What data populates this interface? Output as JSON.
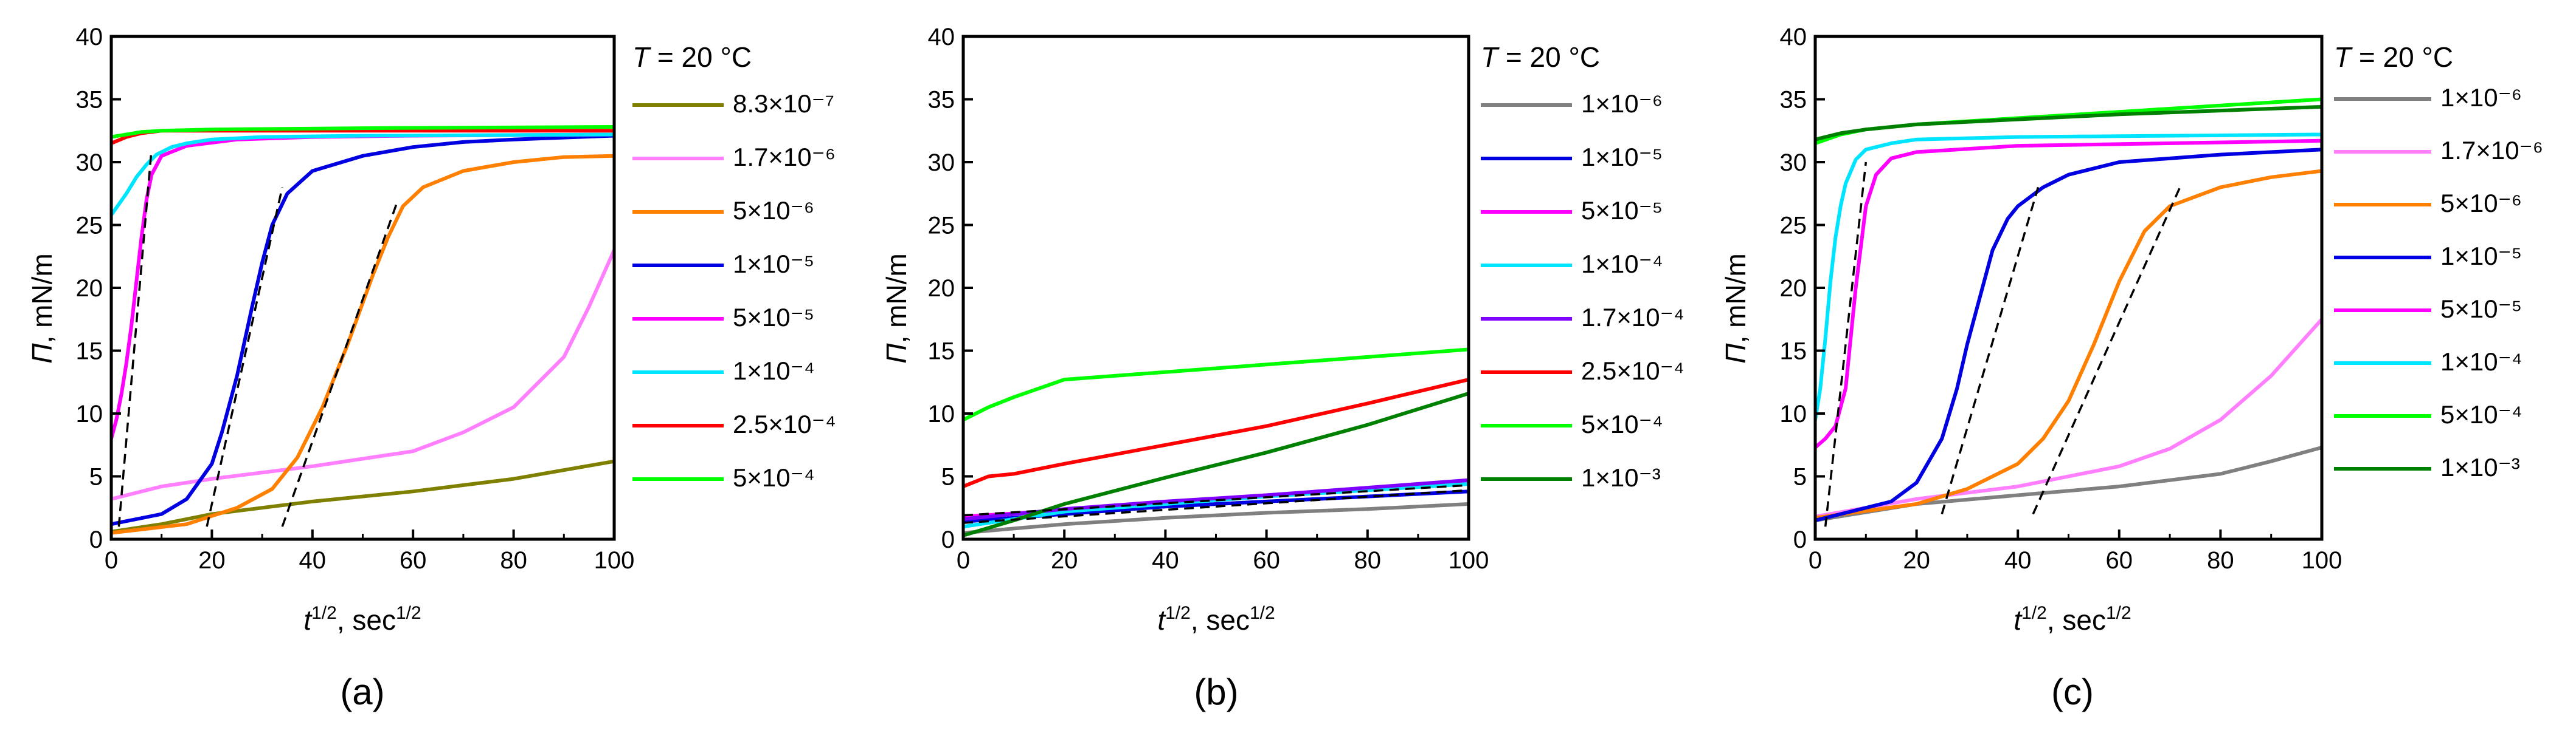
{
  "chart_data": [
    {
      "type": "line",
      "panel_label": "(a)",
      "xlabel_base": "t",
      "xlabel_exp": "1/2",
      "xlabel_units": ", sec",
      "xlabel_units_exp": "1/2",
      "ylabel_symbol": "Π",
      "ylabel_units": ", mN/m",
      "xlim": [
        0,
        100
      ],
      "ylim": [
        0,
        40
      ],
      "xticks": [
        0,
        20,
        40,
        60,
        80,
        100
      ],
      "yticks": [
        0,
        5,
        10,
        15,
        20,
        25,
        30,
        35,
        40
      ],
      "legend_title_var": "T",
      "legend_title_rest": " = 20 °C",
      "legend_labels": [
        "8.3×10⁻⁷",
        "1.7×10⁻⁶",
        "5×10⁻⁶",
        "1×10⁻⁵",
        "5×10⁻⁵",
        "1×10⁻⁴",
        "2.5×10⁻⁴",
        "5×10⁻⁴"
      ],
      "series": [
        {
          "name": "8.3×10⁻⁷",
          "color": "#808000",
          "x": [
            0,
            10,
            20,
            40,
            60,
            80,
            100
          ],
          "y": [
            0.6,
            1.2,
            2.0,
            3.0,
            3.8,
            4.8,
            6.2
          ]
        },
        {
          "name": "1.7×10⁻⁶",
          "color": "#ff7fff",
          "x": [
            0,
            10,
            20,
            40,
            60,
            70,
            80,
            90,
            95,
            100
          ],
          "y": [
            3.2,
            4.2,
            4.8,
            5.8,
            7.0,
            8.5,
            10.5,
            14.5,
            18.5,
            23.0
          ]
        },
        {
          "name": "5×10⁻⁶",
          "color": "#ff7f00",
          "x": [
            0,
            15,
            25,
            32,
            37,
            42,
            47,
            52,
            55,
            58,
            62,
            70,
            80,
            90,
            100
          ],
          "y": [
            0.5,
            1.2,
            2.5,
            4.0,
            6.5,
            10.5,
            15.5,
            21.0,
            24.0,
            26.5,
            28.0,
            29.3,
            30.0,
            30.4,
            30.5
          ]
        },
        {
          "name": "1×10⁻⁵",
          "color": "#0000e0",
          "x": [
            0,
            10,
            15,
            20,
            22,
            25,
            28,
            30,
            32,
            35,
            40,
            50,
            60,
            70,
            80,
            100
          ],
          "y": [
            1.2,
            2.0,
            3.2,
            6.0,
            8.5,
            13.0,
            18.5,
            22.0,
            25.0,
            27.5,
            29.3,
            30.5,
            31.2,
            31.6,
            31.8,
            32.1
          ]
        },
        {
          "name": "5×10⁻⁵",
          "color": "#ff00ff",
          "x": [
            0,
            1,
            2,
            3,
            4,
            5,
            6,
            7,
            8,
            10,
            15,
            25,
            40,
            60,
            100
          ],
          "y": [
            8.0,
            9.5,
            11.5,
            14.0,
            17.0,
            20.5,
            24.0,
            27.0,
            29.0,
            30.5,
            31.3,
            31.8,
            32.0,
            32.1,
            32.2
          ]
        },
        {
          "name": "1×10⁻⁴",
          "color": "#00e5ff",
          "x": [
            0,
            3,
            5,
            7,
            9,
            12,
            15,
            20,
            30,
            50,
            100
          ],
          "y": [
            25.8,
            27.5,
            28.8,
            29.8,
            30.6,
            31.2,
            31.5,
            31.8,
            32.0,
            32.1,
            32.2
          ]
        },
        {
          "name": "2.5×10⁻⁴",
          "color": "#ff0000",
          "x": [
            0,
            3,
            6,
            10,
            20,
            50,
            100
          ],
          "y": [
            31.5,
            32.0,
            32.3,
            32.5,
            32.5,
            32.5,
            32.5
          ]
        },
        {
          "name": "5×10⁻⁴",
          "color": "#00ff00",
          "x": [
            0,
            3,
            6,
            10,
            20,
            50,
            100
          ],
          "y": [
            32.0,
            32.2,
            32.4,
            32.5,
            32.6,
            32.7,
            32.8
          ]
        }
      ],
      "guides": [
        {
          "x": [
            1.5,
            8
          ],
          "y": [
            1,
            31
          ]
        },
        {
          "x": [
            19,
            34
          ],
          "y": [
            1,
            28
          ]
        },
        {
          "x": [
            34,
            57
          ],
          "y": [
            1,
            27
          ]
        }
      ]
    },
    {
      "type": "line",
      "panel_label": "(b)",
      "xlabel_base": "t",
      "xlabel_exp": "1/2",
      "xlabel_units": ", sec",
      "xlabel_units_exp": "1/2",
      "ylabel_symbol": "Π",
      "ylabel_units": ", mN/m",
      "xlim": [
        0,
        100
      ],
      "ylim": [
        0,
        40
      ],
      "xticks": [
        0,
        20,
        40,
        60,
        80,
        100
      ],
      "yticks": [
        0,
        5,
        10,
        15,
        20,
        25,
        30,
        35,
        40
      ],
      "legend_title_var": "T",
      "legend_title_rest": " = 20 °C",
      "legend_labels": [
        "1×10⁻⁶",
        "1×10⁻⁵",
        "5×10⁻⁵",
        "1×10⁻⁴",
        "1.7×10⁻⁴",
        "2.5×10⁻⁴",
        "5×10⁻⁴",
        "1×10⁻³"
      ],
      "series": [
        {
          "name": "1×10⁻⁶",
          "color": "#808080",
          "x": [
            0,
            20,
            40,
            60,
            80,
            100
          ],
          "y": [
            0.5,
            1.2,
            1.7,
            2.1,
            2.4,
            2.8
          ]
        },
        {
          "name": "1×10⁻⁵",
          "color": "#0000e0",
          "x": [
            0,
            20,
            40,
            60,
            80,
            100
          ],
          "y": [
            1.4,
            2.0,
            2.6,
            3.0,
            3.4,
            3.8
          ]
        },
        {
          "name": "5×10⁻⁵",
          "color": "#ff00ff",
          "x": [
            0,
            20,
            40,
            60,
            80,
            100
          ],
          "y": [
            1.8,
            2.3,
            2.9,
            3.5,
            4.0,
            4.5
          ]
        },
        {
          "name": "1×10⁻⁴",
          "color": "#00e5ff",
          "x": [
            0,
            20,
            40,
            60,
            80,
            100
          ],
          "y": [
            1.0,
            2.2,
            2.8,
            3.4,
            3.9,
            4.4
          ]
        },
        {
          "name": "1.7×10⁻⁴",
          "color": "#8000ff",
          "x": [
            0,
            20,
            40,
            60,
            80,
            100
          ],
          "y": [
            1.6,
            2.4,
            3.0,
            3.5,
            4.1,
            4.7
          ]
        },
        {
          "name": "2.5×10⁻⁴",
          "color": "#ff0000",
          "x": [
            0,
            5,
            10,
            20,
            40,
            60,
            80,
            100
          ],
          "y": [
            4.2,
            5.0,
            5.2,
            6.0,
            7.5,
            9.0,
            10.8,
            12.7
          ]
        },
        {
          "name": "5×10⁻⁴",
          "color": "#00ff00",
          "x": [
            0,
            5,
            10,
            15,
            20,
            30,
            40,
            60,
            80,
            100
          ],
          "y": [
            9.5,
            10.5,
            11.3,
            12.0,
            12.7,
            13.0,
            13.3,
            13.9,
            14.5,
            15.1
          ]
        },
        {
          "name": "1×10⁻³",
          "color": "#008000",
          "x": [
            0,
            10,
            20,
            40,
            60,
            80,
            100
          ],
          "y": [
            0.3,
            1.5,
            2.8,
            4.9,
            6.9,
            9.1,
            11.6
          ]
        }
      ],
      "guides": [
        {
          "x": [
            0,
            100
          ],
          "y": [
            1.9,
            4.3
          ]
        },
        {
          "x": [
            0,
            100
          ],
          "y": [
            1.3,
            3.9
          ]
        }
      ]
    },
    {
      "type": "line",
      "panel_label": "(c)",
      "xlabel_base": "t",
      "xlabel_exp": "1/2",
      "xlabel_units": ", sec",
      "xlabel_units_exp": "1/2",
      "ylabel_symbol": "Π",
      "ylabel_units": ", mN/m",
      "xlim": [
        0,
        100
      ],
      "ylim": [
        0,
        40
      ],
      "xticks": [
        0,
        20,
        40,
        60,
        80,
        100
      ],
      "yticks": [
        0,
        5,
        10,
        15,
        20,
        25,
        30,
        35,
        40
      ],
      "legend_title_var": "T",
      "legend_title_rest": " = 20 °C",
      "legend_labels": [
        "1×10⁻⁶",
        "1.7×10⁻⁶",
        "5×10⁻⁶",
        "1×10⁻⁵",
        "5×10⁻⁵",
        "1×10⁻⁴",
        "5×10⁻⁴",
        "1×10⁻³"
      ],
      "series": [
        {
          "name": "1×10⁻⁶",
          "color": "#808080",
          "x": [
            0,
            20,
            40,
            60,
            80,
            90,
            100
          ],
          "y": [
            1.5,
            2.8,
            3.5,
            4.2,
            5.2,
            6.2,
            7.3
          ]
        },
        {
          "name": "1.7×10⁻⁶",
          "color": "#ff7fff",
          "x": [
            0,
            20,
            40,
            60,
            70,
            80,
            90,
            100
          ],
          "y": [
            1.8,
            3.2,
            4.2,
            5.8,
            7.2,
            9.5,
            13.0,
            17.5
          ]
        },
        {
          "name": "5×10⁻⁶",
          "color": "#ff7f00",
          "x": [
            0,
            20,
            30,
            40,
            45,
            50,
            55,
            60,
            65,
            70,
            80,
            90,
            100
          ],
          "y": [
            1.7,
            2.8,
            4.0,
            6.0,
            8.0,
            11.0,
            15.5,
            20.5,
            24.5,
            26.5,
            28.0,
            28.8,
            29.3
          ]
        },
        {
          "name": "1×10⁻⁵",
          "color": "#0000e0",
          "x": [
            0,
            15,
            20,
            25,
            28,
            30,
            33,
            35,
            38,
            40,
            45,
            50,
            60,
            80,
            100
          ],
          "y": [
            1.5,
            3.0,
            4.5,
            8.0,
            12.0,
            15.5,
            20.0,
            23.0,
            25.5,
            26.5,
            28.0,
            29.0,
            30.0,
            30.6,
            31.0
          ]
        },
        {
          "name": "5×10⁻⁵",
          "color": "#ff00ff",
          "x": [
            0,
            2,
            4,
            6,
            8,
            10,
            12,
            15,
            20,
            40,
            100
          ],
          "y": [
            7.3,
            8.0,
            9.0,
            12.0,
            20.0,
            26.5,
            29.0,
            30.3,
            30.8,
            31.3,
            31.7
          ]
        },
        {
          "name": "1×10⁻⁴",
          "color": "#00e5ff",
          "x": [
            0,
            1,
            2,
            3,
            4,
            5,
            6,
            8,
            10,
            15,
            20,
            40,
            100
          ],
          "y": [
            9.5,
            12.0,
            16.0,
            20.5,
            24.0,
            26.5,
            28.3,
            30.2,
            31.0,
            31.5,
            31.8,
            32.0,
            32.2
          ]
        },
        {
          "name": "5×10⁻⁴",
          "color": "#00ff00",
          "x": [
            0,
            5,
            10,
            20,
            40,
            60,
            80,
            100
          ],
          "y": [
            31.5,
            32.2,
            32.6,
            33.0,
            33.5,
            34.0,
            34.5,
            35.0
          ]
        },
        {
          "name": "1×10⁻³",
          "color": "#008000",
          "x": [
            0,
            5,
            10,
            20,
            40,
            60,
            80,
            100
          ],
          "y": [
            31.8,
            32.3,
            32.6,
            33.0,
            33.4,
            33.8,
            34.1,
            34.4
          ]
        }
      ],
      "guides": [
        {
          "x": [
            2,
            10
          ],
          "y": [
            1,
            30
          ]
        },
        {
          "x": [
            25,
            44
          ],
          "y": [
            2,
            28
          ]
        },
        {
          "x": [
            43,
            72
          ],
          "y": [
            2,
            28
          ]
        }
      ]
    }
  ]
}
